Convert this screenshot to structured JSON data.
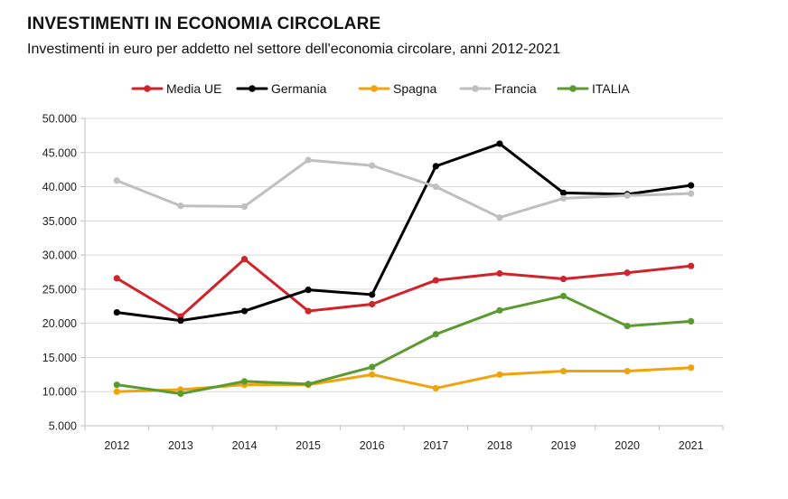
{
  "chart_data": {
    "type": "line",
    "title": "INVESTIMENTI IN ECONOMIA CIRCOLARE",
    "subtitle": "Investimenti in euro per addetto nel settore dell'economia circolare, anni 2012-2021",
    "xlabel": "",
    "ylabel": "",
    "categories": [
      "2012",
      "2013",
      "2014",
      "2015",
      "2016",
      "2017",
      "2018",
      "2019",
      "2020",
      "2021"
    ],
    "ylim": [
      5000,
      50000
    ],
    "ytick_labels": [
      "5.000",
      "10.000",
      "15.000",
      "20.000",
      "25.000",
      "30.000",
      "35.000",
      "40.000",
      "45.000",
      "50.000"
    ],
    "grid": true,
    "legend_position": "top",
    "series": [
      {
        "name": "Media UE",
        "color": "#d0232a",
        "values": [
          26600,
          21000,
          29400,
          21800,
          22800,
          26300,
          27300,
          26500,
          27400,
          28400
        ]
      },
      {
        "name": "Germania",
        "color": "#000000",
        "values": [
          21600,
          20400,
          21800,
          24900,
          24200,
          43000,
          46300,
          39100,
          38900,
          40200
        ]
      },
      {
        "name": "Spagna",
        "color": "#f0a30a",
        "values": [
          10000,
          10300,
          11000,
          11000,
          12500,
          10500,
          12500,
          13000,
          13000,
          13500
        ]
      },
      {
        "name": "Francia",
        "color": "#bfbfbf",
        "values": [
          40900,
          37200,
          37100,
          43900,
          43100,
          40000,
          35500,
          38300,
          38700,
          39000
        ]
      },
      {
        "name": "ITALIA",
        "color": "#5a9a2f",
        "values": [
          11000,
          9700,
          11500,
          11100,
          13600,
          18400,
          21900,
          24000,
          19600,
          20300
        ]
      }
    ]
  }
}
